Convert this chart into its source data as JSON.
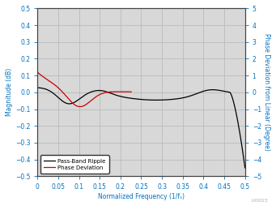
{
  "title": "",
  "xlabel": "Normalized Frequency (1/fₛ)",
  "ylabel_left": "Magnitude (dB)",
  "ylabel_right": "Phase Deviation from Linear (Degree)",
  "xlim": [
    0,
    0.5
  ],
  "ylim_left": [
    -0.5,
    0.5
  ],
  "ylim_right": [
    -5,
    5
  ],
  "xticks": [
    0,
    0.05,
    0.1,
    0.15,
    0.2,
    0.25,
    0.3,
    0.35,
    0.4,
    0.45,
    0.5
  ],
  "yticks_left": [
    -0.5,
    -0.4,
    -0.3,
    -0.2,
    -0.1,
    0.0,
    0.1,
    0.2,
    0.3,
    0.4,
    0.5
  ],
  "yticks_right": [
    -5,
    -4,
    -3,
    -2,
    -1,
    0,
    1,
    2,
    3,
    4,
    5
  ],
  "passband_color": "#000000",
  "phase_color": "#cc0000",
  "legend_labels": [
    "Pass-Band Ripple",
    "Phase Deviation"
  ],
  "label_color": "#0070c0",
  "plot_bg_color": "#d8d8d8",
  "fig_bg_color": "#ffffff",
  "grid_color": "#bbbbbb",
  "watermark": "LX0023"
}
